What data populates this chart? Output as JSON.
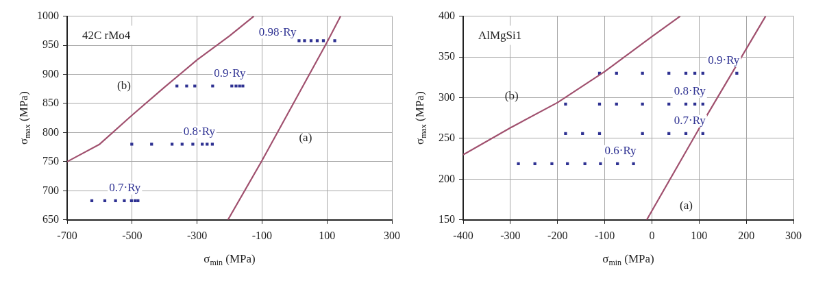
{
  "chart_data": [
    {
      "type": "scatter",
      "title": "42C rMo4",
      "xlabel": "σ$_{min}$ (MPa)",
      "ylabel": "σ$_{max}$ (MPa)",
      "xlim": [
        -700,
        300
      ],
      "xticks": [
        -700,
        -500,
        -300,
        -100,
        100,
        300
      ],
      "ylim": [
        650,
        1000
      ],
      "yticks": [
        650,
        700,
        750,
        800,
        850,
        900,
        950,
        1000
      ],
      "grid": true,
      "marker": "square",
      "line_style": "solid",
      "series": [
        {
          "name": "0.7·Ry",
          "color": "#2e3192",
          "x": [
            -624,
            -584,
            -551,
            -524,
            -502,
            -491,
            -482
          ],
          "values": [
            683,
            683,
            683,
            683,
            683,
            683,
            683
          ]
        },
        {
          "name": "0.8·Ry",
          "color": "#2e3192",
          "x": [
            -501,
            -440,
            -377,
            -346,
            -313,
            -284,
            -269,
            -253
          ],
          "values": [
            780,
            780,
            780,
            780,
            780,
            780,
            780,
            780
          ]
        },
        {
          "name": "0.9·Ry",
          "color": "#2e3192",
          "x": [
            -362,
            -332,
            -307,
            -252,
            -193,
            -180,
            -169,
            -159
          ],
          "values": [
            880,
            880,
            880,
            880,
            880,
            880,
            880,
            880
          ]
        },
        {
          "name": "0.98·Ry",
          "color": "#2e3192",
          "x": [
            14,
            31,
            51,
            70,
            89,
            124
          ],
          "values": [
            958,
            958,
            958,
            958,
            958,
            958
          ]
        },
        {
          "name": "(b)",
          "type": "line",
          "marker": "none",
          "color": "#a0506e",
          "x": [
            -700,
            -600,
            -500,
            -400,
            -300,
            -200,
            -125
          ],
          "values": [
            750,
            780,
            830,
            878,
            925,
            966,
            1000
          ]
        },
        {
          "name": "(a)",
          "type": "line",
          "marker": "none",
          "color": "#a0506e",
          "x": [
            -205,
            -100,
            100,
            142
          ],
          "values": [
            650,
            752,
            955,
            1000
          ]
        }
      ]
    },
    {
      "type": "scatter",
      "title": "AlMgSi1",
      "xlabel": "σ$_{min}$ (MPa)",
      "ylabel": "σ$_{max}$ (MPa)",
      "xlim": [
        -400,
        300
      ],
      "xticks": [
        -400,
        -300,
        -200,
        -100,
        0,
        100,
        200,
        300
      ],
      "ylim": [
        150,
        400
      ],
      "yticks": [
        150,
        200,
        250,
        300,
        350,
        400
      ],
      "grid": true,
      "marker": "square",
      "line_style": "solid",
      "series": [
        {
          "name": "0.6·Ry",
          "color": "#2e3192",
          "x": [
            -283,
            -248,
            -212,
            -179,
            -142,
            -109,
            -73,
            -39
          ],
          "values": [
            219,
            219,
            219,
            219,
            219,
            219,
            219,
            219
          ]
        },
        {
          "name": "0.7·Ry",
          "color": "#2e3192",
          "x": [
            -183,
            -147,
            -111,
            -20,
            36,
            72,
            108
          ],
          "values": [
            256,
            256,
            256,
            256,
            256,
            256,
            256
          ]
        },
        {
          "name": "0.8·Ry",
          "color": "#2e3192",
          "x": [
            -183,
            -111,
            -75,
            -20,
            36,
            72,
            91,
            108
          ],
          "values": [
            292,
            292,
            292,
            292,
            292,
            292,
            292,
            292
          ]
        },
        {
          "name": "0.9·Ry",
          "color": "#2e3192",
          "x": [
            -111,
            -75,
            -20,
            36,
            72,
            91,
            108,
            180
          ],
          "values": [
            330,
            330,
            330,
            330,
            330,
            330,
            330,
            330
          ]
        },
        {
          "name": "(b)",
          "type": "line",
          "marker": "none",
          "color": "#a0506e",
          "x": [
            -400,
            -300,
            -200,
            -100,
            0,
            60
          ],
          "values": [
            230,
            263,
            294,
            332,
            375,
            400
          ]
        },
        {
          "name": "(a)",
          "type": "line",
          "marker": "none",
          "color": "#a0506e",
          "x": [
            -11,
            100,
            241
          ],
          "values": [
            150,
            262,
            400
          ]
        }
      ]
    }
  ]
}
